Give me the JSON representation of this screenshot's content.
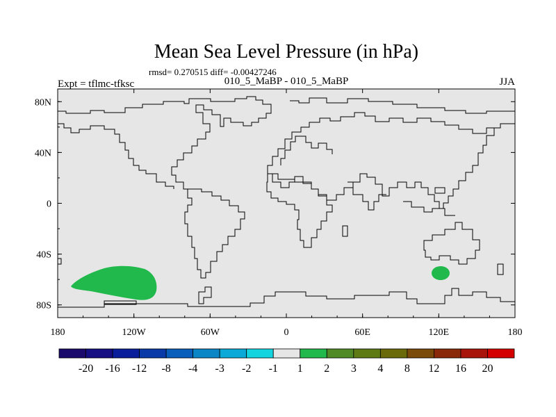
{
  "chart_data": {
    "type": "heatmap",
    "title": "Mean Sea Level Pressure (in hPa)",
    "stats": "rmsd= 0.270515 diff= -0.00427246",
    "subtitle": "010_5_MaBP - 010_5_MaBP",
    "left_label": "Expt = tflmc-tfksc",
    "season": "JJA",
    "x_ticks": [
      {
        "label": "180",
        "lon": -180
      },
      {
        "label": "120W",
        "lon": -120
      },
      {
        "label": "60W",
        "lon": -60
      },
      {
        "label": "0",
        "lon": 0
      },
      {
        "label": "60E",
        "lon": 60
      },
      {
        "label": "120E",
        "lon": 120
      },
      {
        "label": "180",
        "lon": 180
      }
    ],
    "y_ticks": [
      {
        "label": "80N",
        "lat": 80
      },
      {
        "label": "40N",
        "lat": 40
      },
      {
        "label": "0",
        "lat": 0
      },
      {
        "label": "40S",
        "lat": -40
      },
      {
        "label": "80S",
        "lat": -80
      }
    ],
    "xlim": [
      -180,
      180
    ],
    "ylim": [
      -90,
      90
    ],
    "colorbar": {
      "colors": [
        "#1a0a6b",
        "#160f84",
        "#0a1d9a",
        "#0a3aa7",
        "#0a5ebb",
        "#0a86c6",
        "#0aa9d8",
        "#14d4e0",
        "#e6e6e6",
        "#21b94c",
        "#4f8a26",
        "#5e7a14",
        "#6a6a0a",
        "#7a4a0a",
        "#8a280a",
        "#a8140a",
        "#d40000"
      ],
      "labels": [
        "-20",
        "-16",
        "-12",
        "-8",
        "-4",
        "-3",
        "-2",
        "-1",
        "1",
        "2",
        "3",
        "4",
        "8",
        "12",
        "16",
        "20"
      ]
    },
    "anomalies": [
      {
        "name": "south-pacific-anomaly",
        "value_bin": "1 to 2",
        "center_lon": -140,
        "center_lat": -58
      },
      {
        "name": "southern-ocean-australia-anomaly",
        "value_bin": "1 to 2",
        "center_lon": 122,
        "center_lat": -53
      }
    ]
  }
}
